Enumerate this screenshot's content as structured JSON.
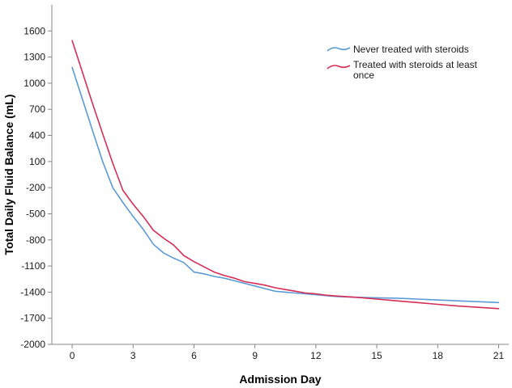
{
  "chart_data": {
    "type": "line",
    "title": "",
    "xlabel": "Admission Day",
    "ylabel": "Total Daily Fluid Balance (mL)",
    "xlim": [
      -1,
      21.5
    ],
    "ylim": [
      -2000,
      1900
    ],
    "x_ticks": [
      0,
      3,
      6,
      9,
      12,
      15,
      18,
      21
    ],
    "y_ticks": [
      -2000,
      -1700,
      -1400,
      -1100,
      -800,
      -500,
      -200,
      100,
      400,
      700,
      1000,
      1300,
      1600
    ],
    "grid": false,
    "legend_position": "top-right",
    "series": [
      {
        "name": "Never treated with steroids",
        "color": "#5b9bd5",
        "x": [
          0,
          0.5,
          1,
          1.5,
          2,
          2.5,
          3,
          3.5,
          4,
          4.5,
          5,
          5.5,
          6,
          6.5,
          7,
          7.5,
          8,
          8.5,
          9,
          9.5,
          10,
          10.5,
          11,
          11.5,
          12,
          12.5,
          13,
          14,
          15,
          16,
          17,
          18,
          19,
          20,
          21
        ],
        "y": [
          1180,
          820,
          460,
          100,
          -200,
          -370,
          -530,
          -680,
          -850,
          -950,
          -1010,
          -1060,
          -1170,
          -1190,
          -1220,
          -1240,
          -1270,
          -1300,
          -1330,
          -1360,
          -1390,
          -1400,
          -1410,
          -1420,
          -1430,
          -1440,
          -1450,
          -1460,
          -1465,
          -1470,
          -1480,
          -1490,
          -1500,
          -1510,
          -1520
        ]
      },
      {
        "name": "Treated with steroids at least once",
        "color": "#d62e56",
        "x": [
          0,
          0.5,
          1,
          1.5,
          2,
          2.5,
          3,
          3.5,
          4,
          4.5,
          5,
          5.5,
          6,
          6.5,
          7,
          7.5,
          8,
          8.5,
          9,
          9.5,
          10,
          10.5,
          11,
          11.5,
          12,
          12.5,
          13,
          14,
          15,
          16,
          17,
          18,
          19,
          20,
          21
        ],
        "y": [
          1490,
          1130,
          770,
          420,
          80,
          -230,
          -390,
          -530,
          -690,
          -780,
          -860,
          -980,
          -1050,
          -1110,
          -1170,
          -1210,
          -1240,
          -1280,
          -1300,
          -1320,
          -1350,
          -1370,
          -1390,
          -1410,
          -1420,
          -1435,
          -1445,
          -1460,
          -1480,
          -1500,
          -1520,
          -1540,
          -1560,
          -1575,
          -1590
        ]
      }
    ]
  }
}
